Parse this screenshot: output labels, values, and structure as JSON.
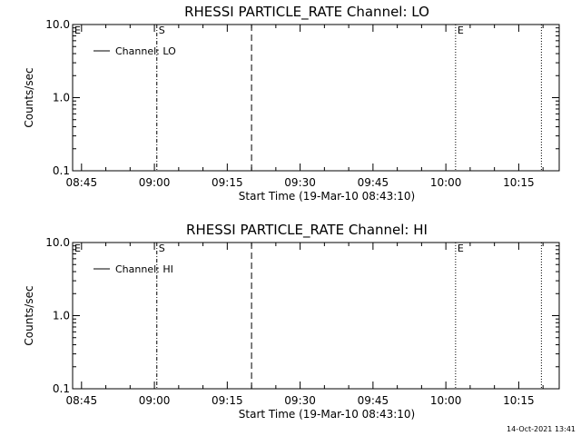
{
  "footer_timestamp": "14-Oct-2021 13:41",
  "chart_data": [
    {
      "type": "line",
      "title": "RHESSI PARTICLE_RATE Channel: LO",
      "xlabel": "Start Time (19-Mar-10 08:43:10)",
      "ylabel": "Counts/sec",
      "yscale": "log",
      "ylim": [
        0.1,
        10.0
      ],
      "yticks": [
        "0.1",
        "1.0",
        "10.0"
      ],
      "xlim": [
        "08:43:10",
        "10:23:20"
      ],
      "xticks": [
        "08:45",
        "09:00",
        "09:15",
        "09:30",
        "09:45",
        "10:00",
        "10:15"
      ],
      "legend": {
        "position": "top-left",
        "entries": [
          "Channel: LO"
        ]
      },
      "series": [
        {
          "name": "Channel: LO",
          "x": [],
          "y": []
        }
      ],
      "markers": [
        {
          "time": "08:43:10",
          "style": "dashdot",
          "label": "E"
        },
        {
          "time": "09:00:30",
          "style": "dashdot",
          "label": "S"
        },
        {
          "time": "09:20:00",
          "style": "dashed",
          "label": ""
        },
        {
          "time": "10:02:00",
          "style": "dotted",
          "label": "E"
        },
        {
          "time": "10:19:40",
          "style": "dotted",
          "label": ""
        }
      ]
    },
    {
      "type": "line",
      "title": "RHESSI PARTICLE_RATE Channel: HI",
      "xlabel": "Start Time (19-Mar-10 08:43:10)",
      "ylabel": "Counts/sec",
      "yscale": "log",
      "ylim": [
        0.1,
        10.0
      ],
      "yticks": [
        "0.1",
        "1.0",
        "10.0"
      ],
      "xlim": [
        "08:43:10",
        "10:23:20"
      ],
      "xticks": [
        "08:45",
        "09:00",
        "09:15",
        "09:30",
        "09:45",
        "10:00",
        "10:15"
      ],
      "legend": {
        "position": "top-left",
        "entries": [
          "Channel: HI"
        ]
      },
      "series": [
        {
          "name": "Channel: HI",
          "x": [],
          "y": []
        }
      ],
      "markers": [
        {
          "time": "08:43:10",
          "style": "dashdot",
          "label": "E"
        },
        {
          "time": "09:00:30",
          "style": "dashdot",
          "label": "S"
        },
        {
          "time": "09:20:00",
          "style": "dashed",
          "label": ""
        },
        {
          "time": "10:02:00",
          "style": "dotted",
          "label": "E"
        },
        {
          "time": "10:19:40",
          "style": "dotted",
          "label": ""
        }
      ]
    }
  ]
}
